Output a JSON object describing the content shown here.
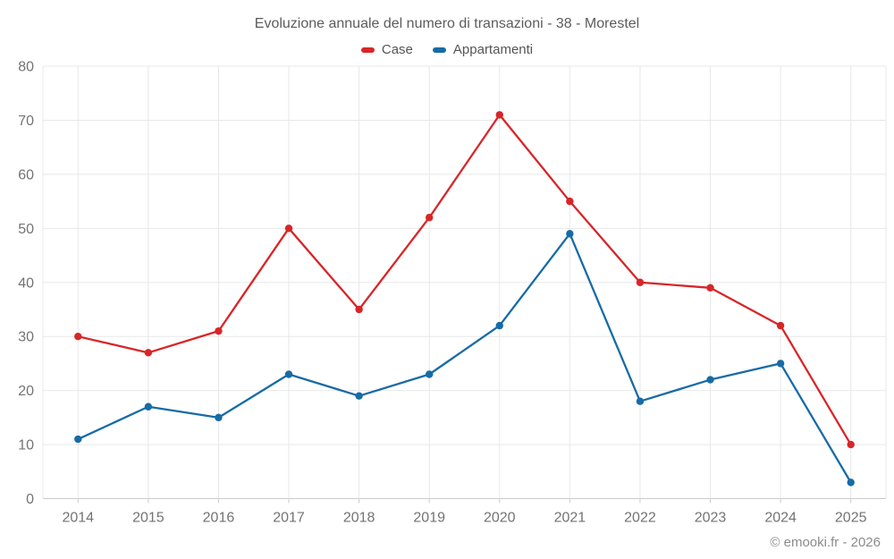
{
  "chart_data": {
    "type": "line",
    "title": "Evoluzione annuale del numero di transazioni - 38 - Morestel",
    "categories": [
      "2014",
      "2015",
      "2016",
      "2017",
      "2018",
      "2019",
      "2020",
      "2021",
      "2022",
      "2023",
      "2024",
      "2025"
    ],
    "series": [
      {
        "name": "Case",
        "color": "#d72628",
        "values": [
          30,
          27,
          31,
          50,
          35,
          52,
          71,
          55,
          40,
          39,
          32,
          10
        ]
      },
      {
        "name": "Appartamenti",
        "color": "#176ba6",
        "values": [
          11,
          17,
          15,
          23,
          19,
          23,
          32,
          49,
          18,
          22,
          25,
          3
        ]
      }
    ],
    "ylim": [
      0,
      80
    ],
    "yticks": [
      0,
      10,
      20,
      30,
      40,
      50,
      60,
      70,
      80
    ],
    "grid": true,
    "legend_position": "top"
  },
  "footer": {
    "text": "© emooki.fr - 2026"
  },
  "colors": {
    "grid": "#e8e8e8",
    "axis": "#cccccc",
    "tick_label": "#737373",
    "title_text": "#5c5c5c",
    "footer_text": "#8c8c8c",
    "background": "#ffffff"
  }
}
